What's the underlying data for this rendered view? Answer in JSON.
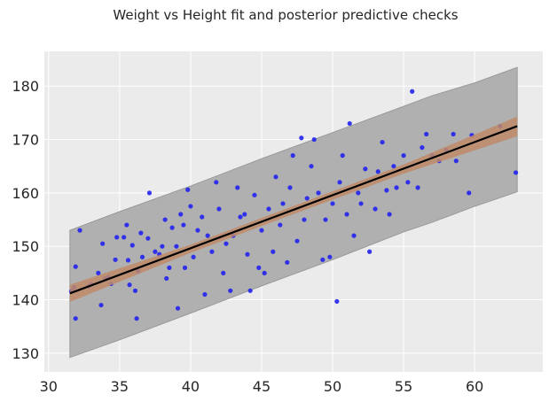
{
  "chart_data": {
    "type": "scatter",
    "title": "Weight vs Height fit and posterior predictive checks",
    "xlabel": "",
    "ylabel": "",
    "xlim": [
      29.7,
      64.8
    ],
    "ylim": [
      126.5,
      186.5
    ],
    "xticks": [
      30,
      35,
      40,
      45,
      50,
      55,
      60
    ],
    "yticks": [
      130,
      140,
      150,
      160,
      170,
      180
    ],
    "grid": true,
    "colors": {
      "background": "#ebebeb",
      "grid": "#ffffff",
      "points": "#2222ee",
      "fit_line": "#000000",
      "mean_hpd": "#c08a68",
      "predictive_hpd": "#b0b0b0",
      "predictive_edge": "#999999"
    },
    "fit_line": {
      "x": [
        31.5,
        63
      ],
      "y": [
        141.2,
        172.5
      ]
    },
    "mean_hpd": {
      "x": [
        31.5,
        40,
        47,
        55,
        63
      ],
      "lower": [
        139.6,
        148.8,
        155.8,
        163.6,
        170.6
      ],
      "upper": [
        142.8,
        150.3,
        157.3,
        165.3,
        174.3
      ]
    },
    "predictive_hpd": {
      "x": [
        31.5,
        35,
        40,
        45,
        50,
        55,
        57,
        60,
        63
      ],
      "lower": [
        129.2,
        132.5,
        137.5,
        142.6,
        147.5,
        152.7,
        154.5,
        157.5,
        160.2
      ],
      "upper": [
        153,
        156.5,
        161.3,
        166.4,
        171.3,
        176.2,
        178.2,
        180.6,
        183.5
      ]
    },
    "points": [
      [
        31.6,
        141.6
      ],
      [
        31.8,
        142.3
      ],
      [
        31.9,
        136.5
      ],
      [
        31.9,
        146.2
      ],
      [
        32.2,
        153
      ],
      [
        32.8,
        142.5
      ],
      [
        33,
        142.9
      ],
      [
        33.5,
        145
      ],
      [
        33.7,
        139
      ],
      [
        33.8,
        150.5
      ],
      [
        34,
        144
      ],
      [
        34.2,
        144.2
      ],
      [
        34.4,
        143
      ],
      [
        34.7,
        147.5
      ],
      [
        34.8,
        151.7
      ],
      [
        35.3,
        151.7
      ],
      [
        35.5,
        154
      ],
      [
        35.6,
        147.4
      ],
      [
        35.7,
        142.8
      ],
      [
        35.9,
        150.2
      ],
      [
        36.1,
        141.7
      ],
      [
        36.2,
        136.5
      ],
      [
        36.3,
        145.4
      ],
      [
        36.5,
        152.5
      ],
      [
        36.6,
        148
      ],
      [
        37,
        151.5
      ],
      [
        37.1,
        160
      ],
      [
        37.5,
        149
      ],
      [
        37.8,
        148.5
      ],
      [
        38,
        150
      ],
      [
        38.2,
        155
      ],
      [
        38.3,
        144
      ],
      [
        38.5,
        146
      ],
      [
        38.7,
        153.5
      ],
      [
        39,
        150
      ],
      [
        39.1,
        138.4
      ],
      [
        39.3,
        156
      ],
      [
        39.5,
        154
      ],
      [
        39.6,
        146
      ],
      [
        39.8,
        160.6
      ],
      [
        40,
        157.5
      ],
      [
        40.2,
        148
      ],
      [
        40.5,
        153
      ],
      [
        40.8,
        155.5
      ],
      [
        41,
        141
      ],
      [
        41.2,
        152
      ],
      [
        41.5,
        149
      ],
      [
        41.8,
        162
      ],
      [
        42,
        157
      ],
      [
        42.3,
        145
      ],
      [
        42.5,
        150.5
      ],
      [
        42.8,
        141.7
      ],
      [
        43,
        152
      ],
      [
        43.3,
        161
      ],
      [
        43.5,
        155.5
      ],
      [
        43.8,
        156
      ],
      [
        44,
        148.5
      ],
      [
        44.2,
        141.7
      ],
      [
        44.5,
        159.6
      ],
      [
        44.8,
        146
      ],
      [
        45,
        153
      ],
      [
        45.2,
        145
      ],
      [
        45.5,
        157
      ],
      [
        45.8,
        149
      ],
      [
        46,
        163
      ],
      [
        46.3,
        154
      ],
      [
        46.5,
        158
      ],
      [
        46.8,
        147
      ],
      [
        47,
        161
      ],
      [
        47.2,
        167
      ],
      [
        47.5,
        151
      ],
      [
        47.8,
        170.3
      ],
      [
        48,
        155
      ],
      [
        48.2,
        159
      ],
      [
        48.5,
        165
      ],
      [
        48.7,
        170
      ],
      [
        49,
        160
      ],
      [
        49.3,
        147.5
      ],
      [
        49.5,
        155
      ],
      [
        49.8,
        148
      ],
      [
        50,
        158
      ],
      [
        50.3,
        139.7
      ],
      [
        50.5,
        162
      ],
      [
        50.7,
        167
      ],
      [
        51,
        156
      ],
      [
        51.2,
        173
      ],
      [
        51.5,
        152
      ],
      [
        51.8,
        160
      ],
      [
        52,
        158
      ],
      [
        52.3,
        164.5
      ],
      [
        52.6,
        149
      ],
      [
        53,
        157
      ],
      [
        53.2,
        164
      ],
      [
        53.5,
        169.5
      ],
      [
        53.8,
        160.5
      ],
      [
        54,
        156
      ],
      [
        54.3,
        165
      ],
      [
        54.5,
        161
      ],
      [
        55,
        167
      ],
      [
        55.3,
        162
      ],
      [
        55.6,
        179
      ],
      [
        56,
        161
      ],
      [
        56.3,
        168.5
      ],
      [
        56.6,
        171
      ],
      [
        57,
        167
      ],
      [
        57.5,
        166
      ],
      [
        58,
        168
      ],
      [
        58.5,
        171
      ],
      [
        58.7,
        166
      ],
      [
        59.6,
        160
      ],
      [
        59.8,
        170.8
      ],
      [
        61.8,
        172.5
      ],
      [
        62.9,
        163.8
      ]
    ]
  }
}
